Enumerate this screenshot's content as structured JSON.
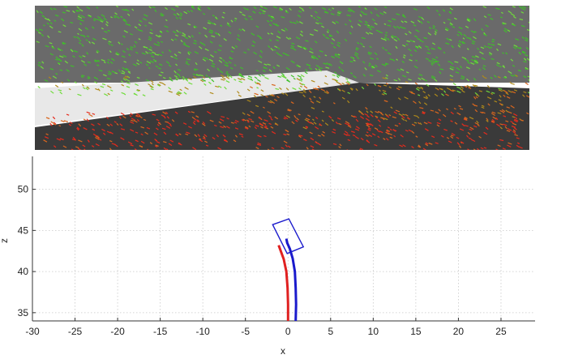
{
  "photo": {
    "subject": "camera frame with tracked feature points",
    "colors": {
      "foliage": "#3fbf2a",
      "foliage_light": "#6fdc3a",
      "mid": "#b08a1a",
      "orange": "#d9661e",
      "ground": "#e62a1c",
      "sky": "#ffffff",
      "road": "#3a3a3a",
      "sidewalk": "#e8e8e8"
    }
  },
  "chart_data": {
    "type": "line",
    "title": "",
    "xlabel": "x",
    "ylabel": "z",
    "xlim": [
      -30,
      29
    ],
    "ylim": [
      34,
      54
    ],
    "xticks": [
      -30,
      -25,
      -20,
      -15,
      -10,
      -5,
      0,
      5,
      10,
      15,
      20,
      25
    ],
    "yticks": [
      35,
      40,
      45,
      50
    ],
    "grid": true,
    "series": [
      {
        "color": "#e02020",
        "points": [
          [
            0.0,
            34.0
          ],
          [
            0.0,
            36.0
          ],
          [
            -0.05,
            38.0
          ],
          [
            -0.2,
            40.0
          ],
          [
            -0.5,
            41.5
          ],
          [
            -0.85,
            42.5
          ],
          [
            -1.1,
            43.2
          ]
        ]
      },
      {
        "color": "#1a1acc",
        "points": [
          [
            0.9,
            34.0
          ],
          [
            0.95,
            36.0
          ],
          [
            0.9,
            38.0
          ],
          [
            0.8,
            40.0
          ],
          [
            0.55,
            41.6
          ],
          [
            0.2,
            42.8
          ],
          [
            -0.1,
            43.5
          ],
          [
            -0.2,
            44.0
          ]
        ]
      }
    ],
    "annotations": [
      {
        "shape": "rotated-rectangle",
        "color": "#1a1acc",
        "corners": [
          [
            -1.8,
            45.7
          ],
          [
            0.1,
            46.4
          ],
          [
            1.8,
            43.0
          ],
          [
            -0.1,
            42.2
          ]
        ]
      }
    ]
  }
}
